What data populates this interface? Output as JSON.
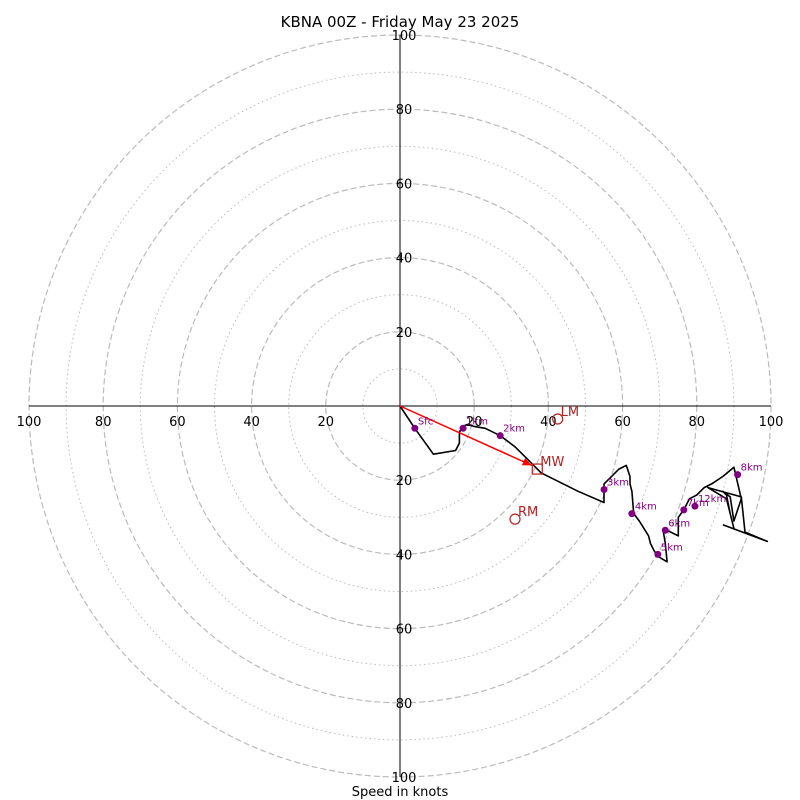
{
  "chart_data": {
    "type": "hodograph",
    "title": "KBNA 00Z - Friday May 23 2025",
    "xlabel": "Speed in knots",
    "range": [
      -100,
      100
    ],
    "axis_ticks": [
      "100",
      "80",
      "60",
      "40",
      "20",
      "20",
      "40",
      "60",
      "80",
      "100"
    ],
    "axis_tick_values": [
      -100,
      -80,
      -60,
      -40,
      -20,
      20,
      40,
      60,
      80,
      100
    ],
    "rings_dashed": [
      20,
      40,
      60,
      80,
      100
    ],
    "rings_dotted": [
      10,
      30,
      50,
      70,
      90
    ],
    "colors": {
      "trace": "#000000",
      "height_marker": "#800080",
      "storm_motion": "#b22222",
      "mean_wind_vector": "#ff0000",
      "rings": "#bbbbbb"
    },
    "trace": [
      [
        0,
        0
      ],
      [
        4,
        -6
      ],
      [
        9,
        -13
      ],
      [
        15,
        -12
      ],
      [
        16,
        -10
      ],
      [
        16,
        -7
      ],
      [
        17,
        -5.5
      ],
      [
        18,
        -5
      ],
      [
        20,
        -5.5
      ],
      [
        23,
        -6
      ],
      [
        27,
        -8
      ],
      [
        31,
        -11
      ],
      [
        35,
        -15
      ],
      [
        38,
        -18
      ],
      [
        42,
        -20
      ],
      [
        48,
        -23
      ],
      [
        55,
        -26
      ],
      [
        55,
        -21
      ],
      [
        58,
        -18
      ],
      [
        59,
        -17
      ],
      [
        61,
        -16
      ],
      [
        62,
        -19
      ],
      [
        62,
        -21
      ],
      [
        62.5,
        -23
      ],
      [
        63,
        -29
      ],
      [
        64.5,
        -31
      ],
      [
        67,
        -35
      ],
      [
        67.5,
        -37
      ],
      [
        68.5,
        -39
      ],
      [
        69.5,
        -40.5
      ],
      [
        72,
        -42
      ],
      [
        71.5,
        -37
      ],
      [
        71,
        -34
      ],
      [
        72,
        -33.5
      ],
      [
        75,
        -35
      ],
      [
        75,
        -30
      ],
      [
        76.5,
        -28
      ],
      [
        78,
        -25
      ],
      [
        80,
        -24
      ],
      [
        82,
        -22
      ],
      [
        84,
        -21
      ],
      [
        87,
        -19
      ],
      [
        90,
        -16.5
      ],
      [
        92,
        -25
      ],
      [
        90,
        -31
      ],
      [
        89,
        -24.5
      ],
      [
        87,
        -23
      ],
      [
        88,
        -24
      ],
      [
        89,
        -29
      ],
      [
        90,
        -33
      ],
      [
        88,
        -25
      ],
      [
        83,
        -22
      ],
      [
        92,
        -24.5
      ],
      [
        93,
        -34
      ],
      [
        99,
        -36.5
      ],
      [
        87,
        -32
      ]
    ],
    "height_markers": [
      {
        "label": "Sfc",
        "u": 4,
        "v": -6
      },
      {
        "label": "1km",
        "u": 17,
        "v": -6
      },
      {
        "label": "2km",
        "u": 27,
        "v": -8
      },
      {
        "label": "3km",
        "u": 55,
        "v": -22.5
      },
      {
        "label": "4km",
        "u": 62.5,
        "v": -29
      },
      {
        "label": "5km",
        "u": 69.5,
        "v": -40
      },
      {
        "label": "6km",
        "u": 71.5,
        "v": -33.5
      },
      {
        "label": "7km",
        "u": 76.5,
        "v": -28
      },
      {
        "label": "8km",
        "u": 91,
        "v": -18.5
      },
      {
        "label": "12km",
        "u": 79.5,
        "v": -27
      }
    ],
    "storm_motions": [
      {
        "label": "LM",
        "marker": "circle",
        "u": 42.5,
        "v": -3.5
      },
      {
        "label": "MW",
        "marker": "square",
        "u": 37,
        "v": -17
      },
      {
        "label": "RM",
        "marker": "circle",
        "u": 31,
        "v": -30.5
      }
    ],
    "mean_wind_vector": {
      "from": [
        0,
        0
      ],
      "to": [
        35.5,
        -16
      ]
    }
  }
}
